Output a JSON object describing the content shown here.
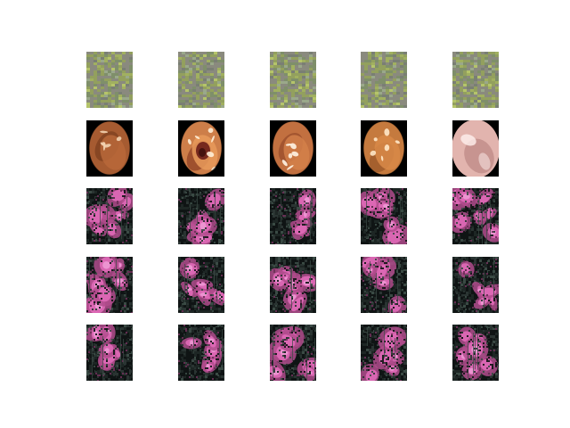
{
  "figure": {
    "rows": [
      {
        "kind": "noise-green",
        "count": 5
      },
      {
        "kind": "endoscopy",
        "count": 5
      },
      {
        "kind": "noise-pink",
        "count": 5
      },
      {
        "kind": "noise-pink",
        "count": 5
      },
      {
        "kind": "noise-pink",
        "count": 5
      }
    ],
    "palette": {
      "green_noise": [
        "#8a8a7e",
        "#7f8f6a",
        "#93a05e",
        "#6e7c62",
        "#9aa88a",
        "#a1b060",
        "#7a7f74",
        "#b5c46a"
      ],
      "pink_noise": [
        "#0f1414",
        "#1d2624",
        "#2a3432",
        "#6b2f56",
        "#b04b8c",
        "#e06ab8",
        "#f0a0d8",
        "#3a4a44"
      ],
      "endoscopy": [
        {
          "bg": "#000000",
          "tissue": "#b8683a",
          "shade": "#6e3518",
          "highlight": "#f2d2b0",
          "lesion": ""
        },
        {
          "bg": "#000000",
          "tissue": "#e89a5a",
          "shade": "#7a2a18",
          "highlight": "#fff0d8",
          "lesion": "#6a1e18"
        },
        {
          "bg": "#000000",
          "tissue": "#d4804a",
          "shade": "#8a4022",
          "highlight": "#fff4e4",
          "lesion": ""
        },
        {
          "bg": "#000000",
          "tissue": "#d88a48",
          "shade": "#8a4a20",
          "highlight": "#ffe8c8",
          "lesion": ""
        },
        {
          "bg": "#000000",
          "tissue": "#e2b4ae",
          "shade": "#b07a78",
          "highlight": "#fff0ee",
          "lesion": ""
        }
      ]
    }
  }
}
